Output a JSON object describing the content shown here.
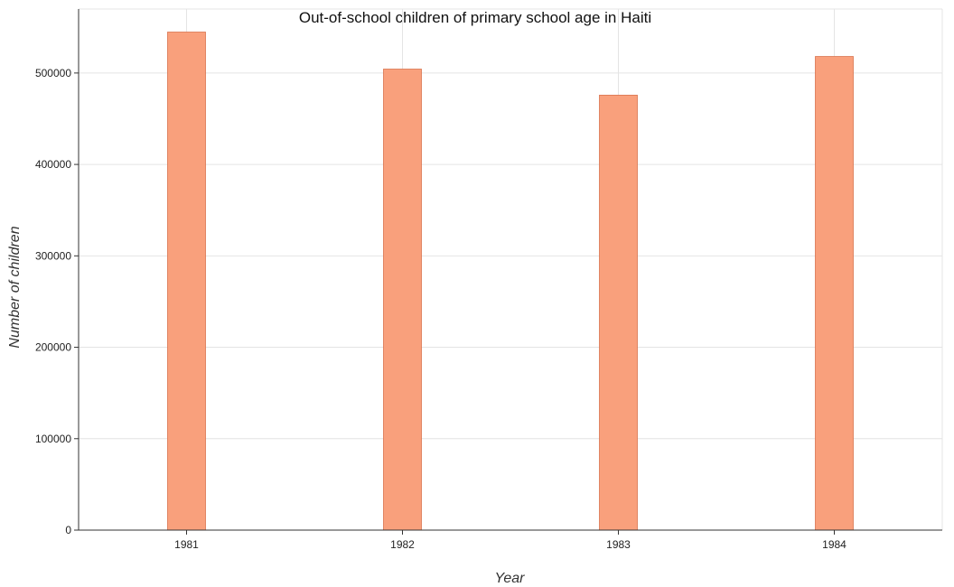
{
  "chart_data": {
    "type": "bar",
    "title": "Out-of-school children of primary school age in Haiti",
    "xlabel": "Year",
    "ylabel": "Number of children",
    "categories": [
      "1981",
      "1982",
      "1983",
      "1984"
    ],
    "values": [
      544800,
      504300,
      475800,
      518100
    ],
    "ylim": [
      0,
      570000
    ],
    "yticks": [
      0,
      100000,
      200000,
      300000,
      400000,
      500000
    ],
    "ytick_labels": [
      "0",
      "100000",
      "200000",
      "300000",
      "400000",
      "500000"
    ],
    "grid": true,
    "bar_color": "#f9a07c"
  }
}
